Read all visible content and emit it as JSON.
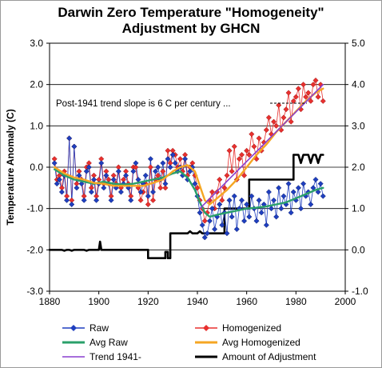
{
  "chart_data": {
    "type": "line",
    "title_lines": [
      "Darwin Zero Temperature \"Homogeneity\"",
      "Adjustment by GHCN"
    ],
    "ylabel": "Temperature Anomaly (C)",
    "xlabel": "",
    "xlim": [
      1880,
      2000
    ],
    "ylim_left": [
      -3.0,
      3.0
    ],
    "ylim_right": [
      -1.0,
      5.0
    ],
    "x_ticks": [
      "1880",
      "1900",
      "1920",
      "1940",
      "1960",
      "1980",
      "2000"
    ],
    "y_ticks_left": [
      "3.0",
      "2.0",
      "1.0",
      "0.0",
      "-1.0",
      "-2.0",
      "-3.0"
    ],
    "y_ticks_right": [
      "5.0",
      "4.0",
      "3.0",
      "2.0",
      "1.0",
      "0.0",
      "-1.0"
    ],
    "grid": "horizontal",
    "legend_position": "bottom",
    "annotation": "Post-1941 trend slope is 6 C per century ...",
    "series": [
      {
        "name": "Raw",
        "color": "#1f3fbf",
        "marker": "diamond",
        "x": [
          1882,
          1883,
          1884,
          1885,
          1886,
          1887,
          1888,
          1889,
          1890,
          1891,
          1892,
          1893,
          1894,
          1895,
          1896,
          1897,
          1898,
          1899,
          1900,
          1901,
          1902,
          1903,
          1904,
          1905,
          1906,
          1907,
          1908,
          1909,
          1910,
          1911,
          1912,
          1913,
          1914,
          1915,
          1916,
          1917,
          1918,
          1919,
          1920,
          1921,
          1922,
          1923,
          1924,
          1925,
          1926,
          1927,
          1928,
          1929,
          1930,
          1931,
          1932,
          1933,
          1934,
          1935,
          1936,
          1937,
          1938,
          1939,
          1940,
          1941,
          1942,
          1943,
          1944,
          1945,
          1946,
          1947,
          1948,
          1949,
          1950,
          1951,
          1952,
          1953,
          1954,
          1955,
          1956,
          1957,
          1958,
          1959,
          1960,
          1961,
          1962,
          1963,
          1964,
          1965,
          1966,
          1967,
          1968,
          1969,
          1970,
          1971,
          1972,
          1973,
          1974,
          1975,
          1976,
          1977,
          1978,
          1979,
          1980,
          1981,
          1982,
          1983,
          1984,
          1985,
          1986,
          1987,
          1988,
          1989,
          1990,
          1991
        ],
        "values": [
          0.1,
          -0.4,
          -0.3,
          -0.6,
          -0.2,
          -0.8,
          0.7,
          -0.9,
          0.5,
          -0.5,
          -0.2,
          -0.4,
          -0.8,
          -0.1,
          0.0,
          -0.6,
          -0.3,
          -0.8,
          -0.4,
          0.1,
          -0.5,
          -0.2,
          -0.4,
          -0.8,
          -0.3,
          -0.5,
          -0.1,
          -0.6,
          -0.4,
          -0.2,
          -0.5,
          -0.8,
          -0.1,
          0.1,
          -0.3,
          -0.6,
          -0.4,
          -0.2,
          -0.7,
          0.2,
          -0.6,
          -0.1,
          0.0,
          -0.3,
          0.1,
          -0.4,
          0.2,
          0.0,
          0.3,
          0.1,
          -0.1,
          0.0,
          -0.2,
          0.2,
          -0.3,
          -0.1,
          0.0,
          -0.4,
          -0.7,
          -1.1,
          -1.4,
          -1.7,
          -1.6,
          -1.3,
          -1.0,
          -1.5,
          -1.2,
          -0.9,
          -1.4,
          -1.1,
          -1.6,
          -0.8,
          -1.2,
          -0.7,
          -1.5,
          -1.0,
          -0.8,
          -1.3,
          -0.9,
          -1.2,
          -0.7,
          -1.0,
          -1.3,
          -0.8,
          -1.1,
          -0.9,
          -1.4,
          -0.6,
          -1.0,
          -0.8,
          -1.2,
          -0.5,
          -1.0,
          -0.7,
          -0.9,
          -0.4,
          -1.1,
          -0.6,
          -0.8,
          -0.5,
          -1.0,
          -0.4,
          -0.7,
          -0.6,
          -0.9,
          -0.5,
          -0.3,
          -0.6,
          -0.4,
          -0.7
        ]
      },
      {
        "name": "Homogenized",
        "color": "#e8302e",
        "marker": "diamond",
        "x": [
          1882,
          1883,
          1884,
          1885,
          1886,
          1887,
          1888,
          1889,
          1890,
          1891,
          1892,
          1893,
          1894,
          1895,
          1896,
          1897,
          1898,
          1899,
          1900,
          1901,
          1902,
          1903,
          1904,
          1905,
          1906,
          1907,
          1908,
          1909,
          1910,
          1911,
          1912,
          1913,
          1914,
          1915,
          1916,
          1917,
          1918,
          1919,
          1920,
          1921,
          1922,
          1923,
          1924,
          1925,
          1926,
          1927,
          1928,
          1929,
          1930,
          1931,
          1932,
          1933,
          1934,
          1935,
          1936,
          1937,
          1938,
          1939,
          1940,
          1941,
          1942,
          1943,
          1944,
          1945,
          1946,
          1947,
          1948,
          1949,
          1950,
          1951,
          1952,
          1953,
          1954,
          1955,
          1956,
          1957,
          1958,
          1959,
          1960,
          1961,
          1962,
          1963,
          1964,
          1965,
          1966,
          1967,
          1968,
          1969,
          1970,
          1971,
          1972,
          1973,
          1974,
          1975,
          1976,
          1977,
          1978,
          1979,
          1980,
          1981,
          1982,
          1983,
          1984,
          1985,
          1986,
          1987,
          1988,
          1989,
          1990,
          1991
        ],
        "values": [
          0.2,
          -0.3,
          -0.2,
          -0.5,
          -0.1,
          -0.7,
          0.7,
          -0.8,
          0.5,
          -0.4,
          -0.1,
          -0.3,
          -0.7,
          0.0,
          0.1,
          -0.5,
          -0.2,
          -0.7,
          -0.3,
          0.2,
          -0.4,
          -0.1,
          -0.3,
          -0.7,
          -0.2,
          -0.4,
          0.0,
          -0.5,
          -0.3,
          -0.1,
          -0.4,
          -0.7,
          0.0,
          0.0,
          -0.5,
          -0.8,
          -0.6,
          -0.4,
          -0.9,
          0.0,
          -0.8,
          -0.3,
          -0.2,
          -0.5,
          -0.1,
          -0.5,
          0.4,
          0.1,
          0.4,
          0.3,
          0.0,
          0.2,
          -0.1,
          0.3,
          -0.2,
          0.0,
          0.1,
          -0.2,
          -0.5,
          -0.8,
          -1.0,
          -1.3,
          -1.1,
          -0.8,
          -0.6,
          -1.0,
          -0.6,
          -0.3,
          -0.8,
          -0.5,
          -0.2,
          0.4,
          -0.1,
          0.5,
          -0.3,
          0.2,
          0.3,
          -0.2,
          0.4,
          0.3,
          0.8,
          0.5,
          0.2,
          0.7,
          0.4,
          0.6,
          0.9,
          1.2,
          0.8,
          1.1,
          1.0,
          1.5,
          0.9,
          1.2,
          1.4,
          1.8,
          1.1,
          1.6,
          1.7,
          1.9,
          1.4,
          2.0,
          1.7,
          1.8,
          1.6,
          2.0,
          2.1,
          1.7,
          2.0,
          1.6
        ]
      },
      {
        "name": "Avg Raw",
        "color": "#2aa06a",
        "x": [
          1882,
          1886,
          1890,
          1894,
          1898,
          1902,
          1906,
          1910,
          1914,
          1918,
          1922,
          1926,
          1930,
          1933,
          1936,
          1939,
          1941,
          1943,
          1945,
          1948,
          1952,
          1956,
          1960,
          1964,
          1968,
          1972,
          1976,
          1980,
          1984,
          1988,
          1991
        ],
        "values": [
          -0.05,
          -0.2,
          -0.3,
          -0.35,
          -0.4,
          -0.35,
          -0.4,
          -0.42,
          -0.4,
          -0.35,
          -0.3,
          -0.25,
          -0.15,
          -0.1,
          -0.25,
          -0.55,
          -0.85,
          -1.1,
          -1.2,
          -1.15,
          -1.1,
          -1.05,
          -1.0,
          -0.98,
          -0.95,
          -0.9,
          -0.85,
          -0.75,
          -0.65,
          -0.55,
          -0.5
        ]
      },
      {
        "name": "Avg Homogenized",
        "color": "#f5a623",
        "x": [
          1882,
          1886,
          1890,
          1894,
          1898,
          1902,
          1906,
          1910,
          1914,
          1918,
          1922,
          1926,
          1930,
          1933,
          1936,
          1939,
          1941,
          1943,
          1945,
          1948,
          1952,
          1956,
          1960,
          1964,
          1968,
          1972,
          1976,
          1980,
          1984,
          1988,
          1991
        ],
        "values": [
          0.0,
          -0.15,
          -0.25,
          -0.3,
          -0.38,
          -0.4,
          -0.45,
          -0.45,
          -0.45,
          -0.45,
          -0.38,
          -0.3,
          -0.1,
          0.0,
          0.05,
          -0.1,
          -0.45,
          -0.8,
          -0.9,
          -0.75,
          -0.55,
          -0.3,
          0.0,
          0.3,
          0.55,
          0.85,
          1.1,
          1.35,
          1.6,
          1.8,
          1.9
        ]
      },
      {
        "name": "Trend 1941-",
        "color": "#8a3fcf",
        "x": [
          1941,
          1991
        ],
        "values": [
          -1.0,
          2.0
        ]
      },
      {
        "name": "Amount of Adjustment",
        "color": "#000000",
        "axis": "right",
        "x": [
          1880,
          1885,
          1886,
          1887,
          1888,
          1889,
          1890,
          1891,
          1892,
          1893,
          1894,
          1895,
          1896,
          1897,
          1898,
          1899,
          1900,
          1900.5,
          1901,
          1902,
          1903,
          1904,
          1905,
          1906,
          1907,
          1908,
          1909,
          1910,
          1911,
          1912,
          1913,
          1914,
          1915,
          1916,
          1917,
          1918,
          1919,
          1920,
          1920,
          1921,
          1922,
          1923,
          1924,
          1925,
          1926,
          1927,
          1927,
          1928,
          1928,
          1929,
          1929,
          1930,
          1930,
          1931,
          1932,
          1933,
          1934,
          1935,
          1936,
          1937,
          1938,
          1939,
          1940,
          1941,
          1942,
          1943,
          1944,
          1945,
          1946,
          1947,
          1948,
          1949,
          1950,
          1951,
          1951,
          1952,
          1953,
          1954,
          1955,
          1956,
          1957,
          1958,
          1959,
          1960,
          1961,
          1961,
          1962,
          1963,
          1964,
          1965,
          1966,
          1967,
          1968,
          1969,
          1970,
          1971,
          1972,
          1973,
          1974,
          1975,
          1976,
          1977,
          1978,
          1979,
          1979,
          1980,
          1981,
          1982,
          1983,
          1984,
          1985,
          1986,
          1987,
          1988,
          1989,
          1990,
          1991
        ],
        "values": [
          0.0,
          0.0,
          -0.02,
          0.0,
          0.0,
          -0.02,
          0.0,
          0.0,
          0.0,
          0.0,
          0.0,
          -0.02,
          0.0,
          0.0,
          0.0,
          0.0,
          0.0,
          0.2,
          0.0,
          0.0,
          0.0,
          0.0,
          0.0,
          0.0,
          0.0,
          0.0,
          0.0,
          0.0,
          0.0,
          0.0,
          0.0,
          0.0,
          0.0,
          0.0,
          0.0,
          0.0,
          0.0,
          0.0,
          -0.2,
          -0.2,
          -0.2,
          -0.2,
          -0.2,
          -0.2,
          -0.2,
          -0.2,
          -0.05,
          -0.05,
          -0.2,
          -0.2,
          0.4,
          0.4,
          0.4,
          0.4,
          0.4,
          0.4,
          0.4,
          0.4,
          0.4,
          0.45,
          0.4,
          0.4,
          0.4,
          0.45,
          0.4,
          0.4,
          0.4,
          0.4,
          0.4,
          0.4,
          0.4,
          0.4,
          0.4,
          0.4,
          1.0,
          1.0,
          1.0,
          1.0,
          1.0,
          1.0,
          1.0,
          1.0,
          1.0,
          1.0,
          1.0,
          1.7,
          1.7,
          1.7,
          1.7,
          1.7,
          1.7,
          1.7,
          1.7,
          1.7,
          1.7,
          1.7,
          1.7,
          1.7,
          1.7,
          1.7,
          1.7,
          1.7,
          1.7,
          1.7,
          2.3,
          2.3,
          2.3,
          2.1,
          2.3,
          2.3,
          2.3,
          2.1,
          2.3,
          2.3,
          2.1,
          2.3,
          2.3
        ]
      }
    ]
  }
}
